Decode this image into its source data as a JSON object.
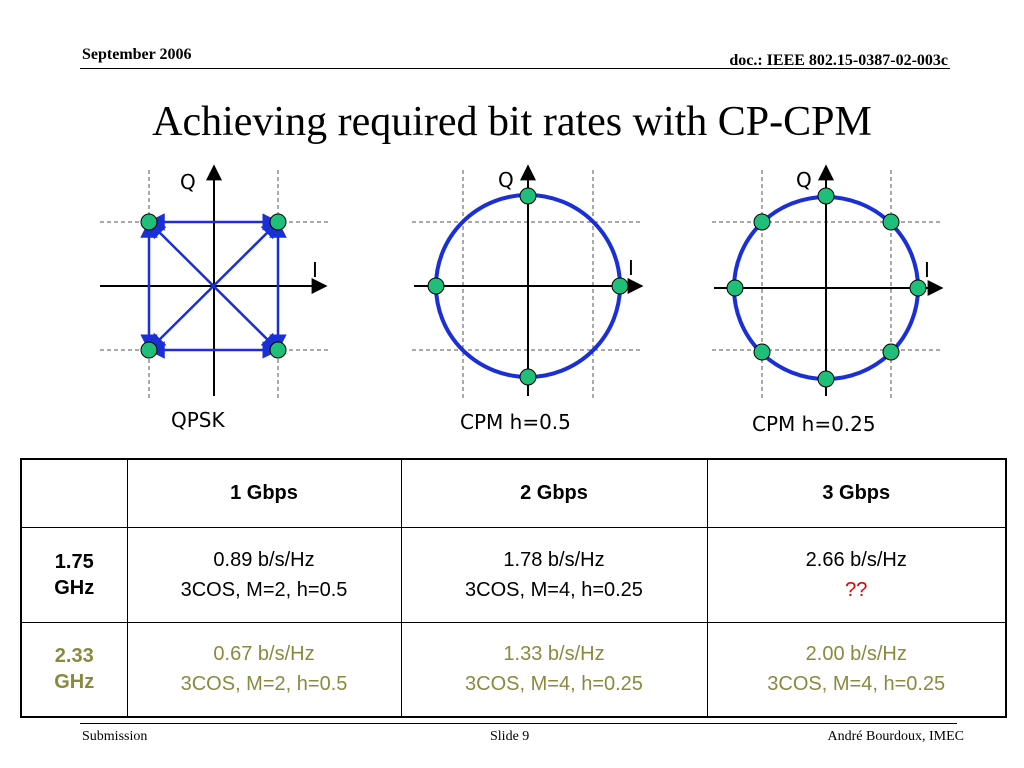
{
  "header": {
    "date": "September 2006",
    "doc": "doc.: IEEE 802.15-0387-02-003c"
  },
  "title": "Achieving required bit rates with CP-CPM",
  "diagrams": {
    "axis_q": "Q",
    "axis_i": "I",
    "qpsk_caption": "QPSK",
    "cpm05_caption": "CPM h=0.5",
    "cpm025_caption": "CPM h=0.25",
    "colors": {
      "point": "#1fbf7a",
      "arrow": "#1a2fd6",
      "circle": "#1a2fd6",
      "axis": "#000000",
      "guide": "#555555"
    }
  },
  "table": {
    "headers": [
      "",
      "1 Gbps",
      "2 Gbps",
      "3 Gbps"
    ],
    "rows": [
      {
        "label": "1.75 GHz",
        "cells": [
          {
            "line1": "0.89 b/s/Hz",
            "line2": "3COS, M=2, h=0.5"
          },
          {
            "line1": "1.78 b/s/Hz",
            "line2": "3COS, M=4, h=0.25"
          },
          {
            "line1": "2.66 b/s/Hz",
            "line2": "??"
          }
        ]
      },
      {
        "label": "2.33 GHz",
        "cells": [
          {
            "line1": "0.67 b/s/Hz",
            "line2": "3COS, M=2, h=0.5"
          },
          {
            "line1": "1.33 b/s/Hz",
            "line2": "3COS, M=4, h=0.25"
          },
          {
            "line1": "2.00 b/s/Hz",
            "line2": "3COS, M=4, h=0.25"
          }
        ]
      }
    ]
  },
  "footer": {
    "left": "Submission",
    "center": "Slide 9",
    "right": "André Bourdoux, IMEC"
  }
}
